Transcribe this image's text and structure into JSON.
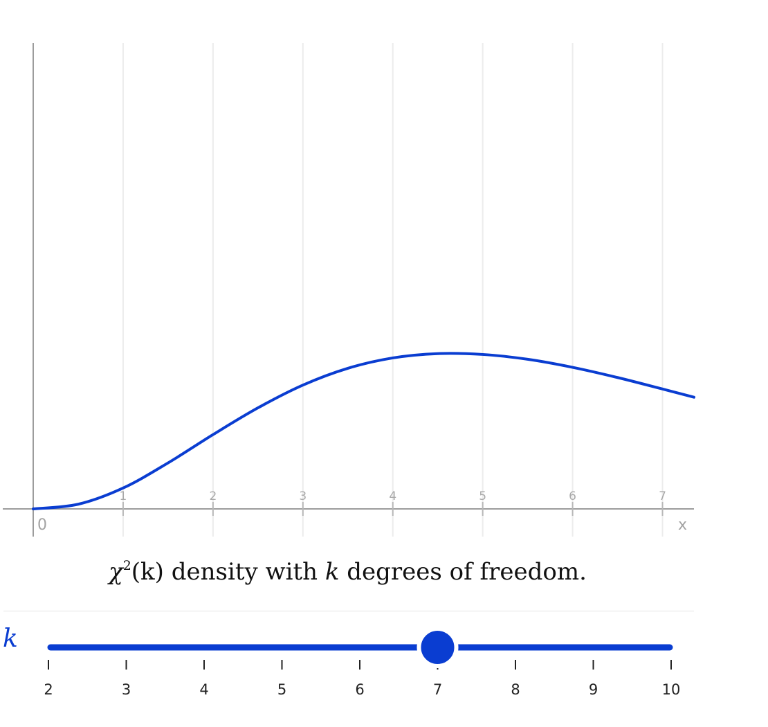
{
  "chart_data": {
    "type": "line",
    "title": "",
    "xlabel": "x",
    "ylabel": "",
    "origin_label": "0",
    "xlim": [
      0,
      7.35
    ],
    "ylim": [
      0,
      0.36
    ],
    "x_ticks": [
      1,
      2,
      3,
      4,
      5,
      6,
      7
    ],
    "x_tick_labels": [
      "1",
      "2",
      "3",
      "4",
      "5",
      "6",
      "7"
    ],
    "grid": true,
    "legend": "none",
    "distribution": "chi-square",
    "degrees_of_freedom": 7,
    "series": [
      {
        "x": [
          0,
          0.5,
          1,
          1.5,
          2,
          2.5,
          3,
          3.5,
          4,
          4.5,
          5,
          5.5,
          6,
          6.5,
          7,
          7.35
        ],
        "y": [
          0,
          0.00361,
          0.01613,
          0.03554,
          0.05739,
          0.07807,
          0.09566,
          0.10864,
          0.11664,
          0.11998,
          0.11932,
          0.11559,
          0.10937,
          0.1015,
          0.09262,
          0.08629
        ]
      }
    ],
    "color": "#0a3dd1"
  },
  "caption": {
    "symbol": "χ",
    "power": "2",
    "arg": "(k)",
    "text": " density with ",
    "k": "k",
    "rest": " degrees of freedom."
  },
  "slider": {
    "label": "k",
    "min": 2,
    "max": 10,
    "value": 7,
    "ticks": [
      "2",
      "3",
      "4",
      "5",
      "6",
      "7",
      "8",
      "9",
      "10"
    ],
    "color": "#0a3dd1"
  }
}
